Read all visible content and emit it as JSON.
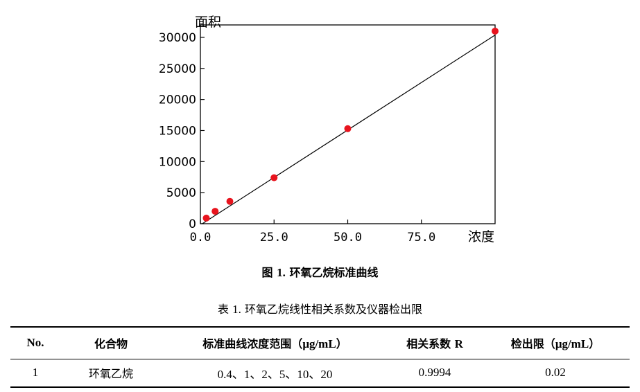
{
  "chart_data": {
    "type": "scatter",
    "ylabel": "面积",
    "xlabel": "浓度",
    "xlim": [
      0,
      100
    ],
    "ylim": [
      0,
      32000
    ],
    "x_ticks": [
      "0.0",
      "25.0",
      "50.0",
      "75.0"
    ],
    "y_ticks": [
      "0",
      "5000",
      "10000",
      "15000",
      "20000",
      "25000",
      "30000"
    ],
    "series": [
      {
        "x": [
          2,
          5,
          10,
          25,
          50,
          100
        ],
        "y": [
          900,
          2000,
          3600,
          7400,
          15300,
          31000
        ]
      }
    ],
    "fit_line": {
      "x": [
        0,
        105
      ],
      "y": [
        -200,
        31900
      ]
    },
    "colors": {
      "points": "#e8141e",
      "line": "#000000"
    },
    "grid": false
  },
  "figure_caption": {
    "label": "图",
    "number": "1.",
    "text": "环氧乙烷标准曲线"
  },
  "table_caption": {
    "label": "表",
    "number": "1.",
    "text": "环氧乙烷线性相关系数及仪器检出限"
  },
  "table": {
    "header": {
      "no": "No.",
      "compound": "化合物",
      "range_text": "标准曲线浓度范围（",
      "range_unit": "μg/mL",
      "range_close": "）",
      "corr_text": "相关系数",
      "corr_sym": "R",
      "lod_text": "检出限（",
      "lod_unit": "μg/mL",
      "lod_close": "）"
    },
    "rows": [
      {
        "no": "1",
        "compound": "环氧乙烷",
        "range": "0.4、1、2、5、10、20",
        "corr": "0.9994",
        "lod": "0.02"
      }
    ]
  }
}
